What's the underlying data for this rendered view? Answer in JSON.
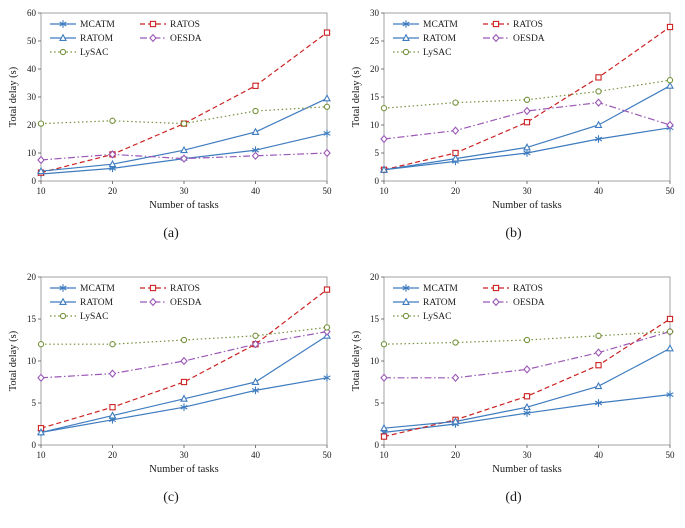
{
  "colors": {
    "text": "#1a1a1a",
    "axis_box": "#8c8c8c",
    "tick": "#595959",
    "background": "#ffffff"
  },
  "series_styles": [
    {
      "name": "MCATM",
      "color": "#3f7cbf",
      "dash": "solid",
      "marker": "asterisk"
    },
    {
      "name": "RATOS",
      "color": "#cc2222",
      "dash": "dashed",
      "marker": "square"
    },
    {
      "name": "RATOM",
      "color": "#3f7cbf",
      "dash": "solid",
      "marker": "triangle"
    },
    {
      "name": "OESDA",
      "color": "#9b59b6",
      "dash": "dashdot",
      "marker": "diamond"
    },
    {
      "name": "LySAC",
      "color": "#76923c",
      "dash": "dotted",
      "marker": "circle"
    }
  ],
  "chart_data": [
    {
      "type": "line",
      "caption": "(a)",
      "xlabel": "Number of tasks",
      "ylabel": "Total delay (s)",
      "x": [
        10,
        20,
        30,
        40,
        50
      ],
      "xlim": [
        10,
        50
      ],
      "ylim": [
        0,
        60
      ],
      "yticks": [
        0,
        10,
        20,
        30,
        40,
        50,
        60
      ],
      "legend_position": "top-left-inside",
      "grid": false,
      "series": [
        {
          "name": "MCATM",
          "values": [
            2.5,
            4.5,
            8,
            11,
            17
          ]
        },
        {
          "name": "RATOS",
          "values": [
            3,
            9.5,
            20.5,
            34,
            53
          ]
        },
        {
          "name": "RATOM",
          "values": [
            3.5,
            6,
            11,
            17.5,
            29.5
          ]
        },
        {
          "name": "OESDA",
          "values": [
            7.5,
            9.5,
            8,
            9,
            10
          ]
        },
        {
          "name": "LySAC",
          "values": [
            20.5,
            21.5,
            20.5,
            25,
            26.5
          ]
        }
      ]
    },
    {
      "type": "line",
      "caption": "(b)",
      "xlabel": "Number of tasks",
      "ylabel": "Total delay (s)",
      "x": [
        10,
        20,
        30,
        40,
        50
      ],
      "xlim": [
        10,
        50
      ],
      "ylim": [
        0,
        30
      ],
      "yticks": [
        0,
        5,
        10,
        15,
        20,
        25,
        30
      ],
      "legend_position": "top-left-inside",
      "grid": false,
      "series": [
        {
          "name": "MCATM",
          "values": [
            2,
            3.5,
            5,
            7.5,
            9.5
          ]
        },
        {
          "name": "RATOS",
          "values": [
            2,
            5,
            10.5,
            18.5,
            27.5
          ]
        },
        {
          "name": "RATOM",
          "values": [
            2,
            4,
            6,
            10,
            17
          ]
        },
        {
          "name": "OESDA",
          "values": [
            7.5,
            9,
            12.5,
            14,
            10
          ]
        },
        {
          "name": "LySAC",
          "values": [
            13,
            14,
            14.5,
            16,
            18
          ]
        }
      ]
    },
    {
      "type": "line",
      "caption": "(c)",
      "xlabel": "Number of tasks",
      "ylabel": "Total delay (s)",
      "x": [
        10,
        20,
        30,
        40,
        50
      ],
      "xlim": [
        10,
        50
      ],
      "ylim": [
        0,
        20
      ],
      "yticks": [
        0,
        5,
        10,
        15,
        20
      ],
      "legend_position": "top-left-inside",
      "grid": false,
      "series": [
        {
          "name": "MCATM",
          "values": [
            1.5,
            3,
            4.5,
            6.5,
            8
          ]
        },
        {
          "name": "RATOS",
          "values": [
            2,
            4.5,
            7.5,
            12,
            18.5
          ]
        },
        {
          "name": "RATOM",
          "values": [
            1.5,
            3.5,
            5.5,
            7.5,
            13
          ]
        },
        {
          "name": "OESDA",
          "values": [
            8,
            8.5,
            10,
            12,
            13.5
          ]
        },
        {
          "name": "LySAC",
          "values": [
            12,
            12,
            12.5,
            13,
            14
          ]
        }
      ]
    },
    {
      "type": "line",
      "caption": "(d)",
      "xlabel": "Number of tasks",
      "ylabel": "Total delay (s)",
      "x": [
        10,
        20,
        30,
        40,
        50
      ],
      "xlim": [
        10,
        50
      ],
      "ylim": [
        0,
        20
      ],
      "yticks": [
        0,
        5,
        10,
        15,
        20
      ],
      "legend_position": "top-left-inside",
      "grid": false,
      "series": [
        {
          "name": "MCATM",
          "values": [
            1.5,
            2.5,
            3.8,
            5,
            6
          ]
        },
        {
          "name": "RATOS",
          "values": [
            1,
            3,
            5.8,
            9.5,
            15
          ]
        },
        {
          "name": "RATOM",
          "values": [
            2,
            2.8,
            4.5,
            7,
            11.5
          ]
        },
        {
          "name": "OESDA",
          "values": [
            8,
            8,
            9,
            11,
            13.5
          ]
        },
        {
          "name": "LySAC",
          "values": [
            12,
            12.2,
            12.5,
            13,
            13.5
          ]
        }
      ]
    }
  ]
}
